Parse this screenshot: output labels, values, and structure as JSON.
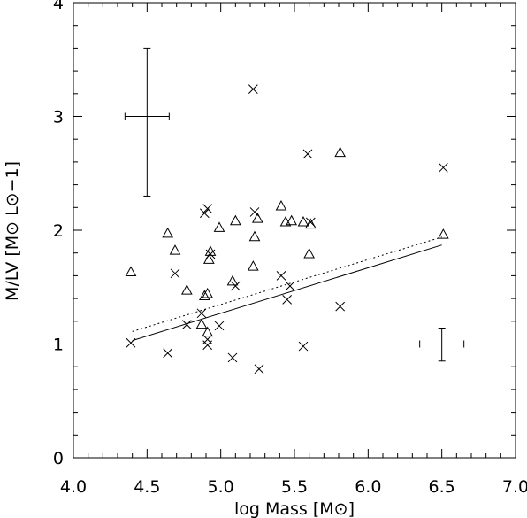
{
  "chart_data": {
    "type": "scatter",
    "xlabel": "log Mass [M⊙]",
    "ylabel": "M/LV [M⊙ L⊙−1]",
    "xlim": [
      4.0,
      7.0
    ],
    "ylim": [
      0,
      4
    ],
    "x_ticks": [
      "4.0",
      "4.5",
      "5.0",
      "5.5",
      "6.0",
      "6.5",
      "7.0"
    ],
    "y_ticks": [
      "0",
      "1",
      "2",
      "3",
      "4"
    ],
    "grid": false,
    "series": [
      {
        "marker": "cross",
        "points": [
          [
            4.39,
            1.01
          ],
          [
            4.64,
            0.92
          ],
          [
            4.69,
            1.62
          ],
          [
            4.77,
            1.17
          ],
          [
            4.87,
            1.27
          ],
          [
            4.89,
            2.15
          ],
          [
            4.91,
            2.19
          ],
          [
            4.91,
            1.04
          ],
          [
            4.91,
            0.99
          ],
          [
            4.93,
            1.79
          ],
          [
            4.99,
            1.16
          ],
          [
            5.08,
            0.88
          ],
          [
            5.1,
            1.51
          ],
          [
            5.22,
            3.24
          ],
          [
            5.23,
            2.16
          ],
          [
            5.26,
            0.78
          ],
          [
            5.41,
            1.6
          ],
          [
            5.45,
            1.39
          ],
          [
            5.47,
            1.51
          ],
          [
            5.56,
            0.98
          ],
          [
            5.59,
            2.67
          ],
          [
            5.61,
            2.07
          ],
          [
            5.81,
            1.33
          ],
          [
            6.51,
            2.55
          ]
        ]
      },
      {
        "marker": "triangle",
        "points": [
          [
            4.39,
            1.63
          ],
          [
            4.64,
            1.97
          ],
          [
            4.69,
            1.82
          ],
          [
            4.77,
            1.47
          ],
          [
            4.87,
            1.17
          ],
          [
            4.89,
            1.42
          ],
          [
            4.91,
            1.44
          ],
          [
            4.91,
            1.1
          ],
          [
            4.92,
            1.74
          ],
          [
            4.93,
            1.81
          ],
          [
            4.99,
            2.02
          ],
          [
            5.08,
            1.55
          ],
          [
            5.1,
            2.08
          ],
          [
            5.22,
            1.68
          ],
          [
            5.23,
            1.94
          ],
          [
            5.25,
            2.1
          ],
          [
            5.41,
            2.21
          ],
          [
            5.44,
            2.07
          ],
          [
            5.48,
            2.08
          ],
          [
            5.56,
            2.07
          ],
          [
            5.6,
            1.79
          ],
          [
            5.61,
            2.05
          ],
          [
            5.81,
            2.68
          ],
          [
            6.51,
            1.96
          ]
        ]
      }
    ],
    "fit_lines": [
      {
        "style": "solid",
        "points": [
          [
            4.4,
            1.03
          ],
          [
            6.5,
            1.87
          ]
        ]
      },
      {
        "style": "dotted",
        "points": [
          [
            4.4,
            1.11
          ],
          [
            6.5,
            1.94
          ]
        ]
      }
    ],
    "error_bars": [
      {
        "x": 4.5,
        "y": 3.0,
        "xerr": 0.15,
        "y_low": 2.3,
        "y_high": 3.6
      },
      {
        "x": 6.5,
        "y": 1.0,
        "xerr": 0.15,
        "y_low": 0.85,
        "y_high": 1.14
      }
    ]
  }
}
